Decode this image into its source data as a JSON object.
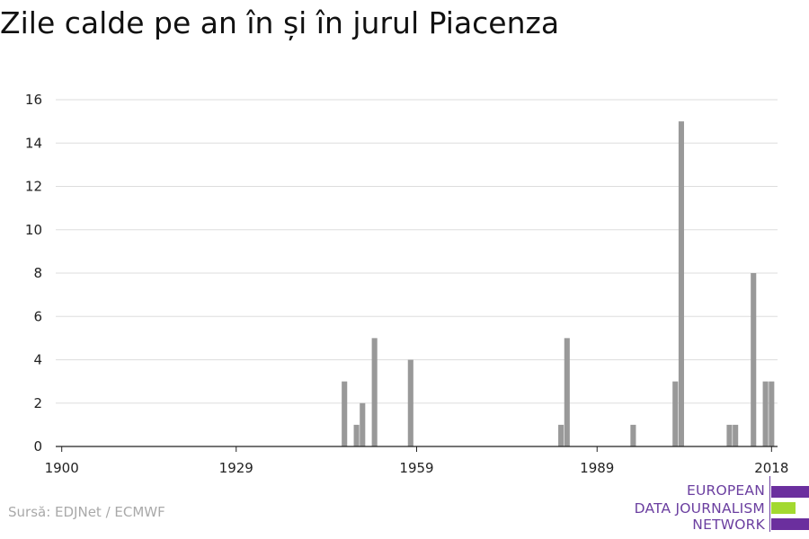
{
  "chart_data": {
    "type": "bar",
    "title": "Zile calde pe an în și în jurul Piacenza",
    "xlabel": "",
    "ylabel": "",
    "x_ticks": [
      1900,
      1929,
      1959,
      1989,
      2018
    ],
    "y_ticks": [
      0,
      2,
      4,
      6,
      8,
      10,
      12,
      14,
      16
    ],
    "xlim": [
      1899,
      2019
    ],
    "ylim": [
      0,
      16
    ],
    "grid": true,
    "bar_color": "#999999",
    "points": [
      {
        "year": 1947,
        "value": 3
      },
      {
        "year": 1949,
        "value": 1
      },
      {
        "year": 1950,
        "value": 2
      },
      {
        "year": 1952,
        "value": 5
      },
      {
        "year": 1958,
        "value": 4
      },
      {
        "year": 1983,
        "value": 1
      },
      {
        "year": 1984,
        "value": 5
      },
      {
        "year": 1995,
        "value": 1
      },
      {
        "year": 2002,
        "value": 3
      },
      {
        "year": 2003,
        "value": 15
      },
      {
        "year": 2011,
        "value": 1
      },
      {
        "year": 2012,
        "value": 1
      },
      {
        "year": 2015,
        "value": 8
      },
      {
        "year": 2017,
        "value": 3
      },
      {
        "year": 2018,
        "value": 3
      }
    ]
  },
  "source": "Sursă: EDJNet / ECMWF",
  "logo": {
    "lines": [
      "EUROPEAN",
      "DATA JOURNALISM",
      "NETWORK"
    ],
    "purple": "#6b2f9e",
    "green": "#a3d930"
  }
}
